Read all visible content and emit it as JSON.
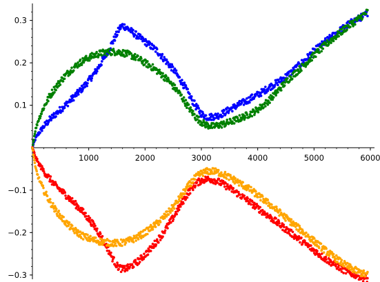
{
  "chart_data": {
    "type": "scatter",
    "title": "",
    "xlabel": "",
    "ylabel": "",
    "xlim": [
      0,
      6000
    ],
    "ylim": [
      -0.31,
      0.34
    ],
    "grid": false,
    "legend": "none",
    "x_ticks": [
      1000,
      2000,
      3000,
      4000,
      5000,
      6000
    ],
    "x_tick_labels": [
      "1000",
      "2000",
      "3000",
      "4000",
      "5000",
      "6000"
    ],
    "y_ticks": [
      -0.3,
      -0.2,
      -0.1,
      0.1,
      0.2,
      0.3
    ],
    "y_tick_labels": [
      "−0.3",
      "−0.2",
      "−0.1",
      "0.1",
      "0.2",
      "0.3"
    ],
    "series": [
      {
        "color": "#0000ff",
        "x": [
          0,
          50,
          100,
          200,
          300,
          400,
          500,
          600,
          700,
          800,
          900,
          1000,
          1100,
          1200,
          1300,
          1400,
          1500,
          1550,
          1600,
          1650,
          1700,
          1800,
          1900,
          2000,
          2100,
          2200,
          2300,
          2400,
          2500,
          2600,
          2700,
          2800,
          2900,
          3000,
          3100,
          3200,
          3300,
          3400,
          3500,
          3600,
          3700,
          3800,
          3900,
          4000,
          4100,
          4200,
          4300,
          4400,
          4500,
          4600,
          4700,
          4800,
          4900,
          5000,
          5100,
          5200,
          5300,
          5400,
          5500,
          5600,
          5700,
          5800,
          5900,
          5950
        ],
        "y": [
          0.0,
          0.02,
          0.032,
          0.05,
          0.065,
          0.078,
          0.09,
          0.102,
          0.115,
          0.128,
          0.142,
          0.158,
          0.175,
          0.195,
          0.218,
          0.243,
          0.268,
          0.282,
          0.288,
          0.285,
          0.28,
          0.27,
          0.26,
          0.25,
          0.24,
          0.23,
          0.215,
          0.2,
          0.185,
          0.165,
          0.145,
          0.12,
          0.098,
          0.08,
          0.072,
          0.073,
          0.076,
          0.082,
          0.09,
          0.097,
          0.104,
          0.11,
          0.118,
          0.125,
          0.133,
          0.142,
          0.15,
          0.158,
          0.168,
          0.178,
          0.19,
          0.202,
          0.215,
          0.228,
          0.238,
          0.25,
          0.26,
          0.27,
          0.28,
          0.29,
          0.298,
          0.305,
          0.312,
          0.318
        ]
      },
      {
        "color": "#008000",
        "x": [
          0,
          50,
          100,
          200,
          300,
          400,
          500,
          600,
          700,
          800,
          900,
          1000,
          1100,
          1200,
          1300,
          1400,
          1500,
          1600,
          1700,
          1800,
          1900,
          2000,
          2100,
          2200,
          2300,
          2400,
          2500,
          2600,
          2700,
          2800,
          2900,
          3000,
          3100,
          3200,
          3300,
          3400,
          3500,
          3600,
          3700,
          3800,
          3900,
          4000,
          4100,
          4200,
          4300,
          4400,
          4500,
          4600,
          4700,
          4800,
          4900,
          5000,
          5100,
          5200,
          5300,
          5400,
          5500,
          5600,
          5700,
          5800,
          5900,
          5950
        ],
        "y": [
          0.0,
          0.04,
          0.063,
          0.095,
          0.12,
          0.14,
          0.157,
          0.172,
          0.185,
          0.196,
          0.205,
          0.212,
          0.218,
          0.222,
          0.225,
          0.226,
          0.226,
          0.224,
          0.22,
          0.215,
          0.208,
          0.2,
          0.192,
          0.183,
          0.172,
          0.16,
          0.145,
          0.13,
          0.11,
          0.09,
          0.072,
          0.06,
          0.053,
          0.05,
          0.053,
          0.056,
          0.06,
          0.065,
          0.07,
          0.076,
          0.082,
          0.09,
          0.1,
          0.112,
          0.125,
          0.14,
          0.155,
          0.168,
          0.18,
          0.192,
          0.205,
          0.218,
          0.23,
          0.242,
          0.253,
          0.264,
          0.275,
          0.286,
          0.295,
          0.305,
          0.315,
          0.32
        ]
      },
      {
        "color": "#ff0000",
        "x": [
          0,
          50,
          100,
          200,
          300,
          400,
          500,
          600,
          700,
          800,
          900,
          1000,
          1100,
          1200,
          1300,
          1400,
          1500,
          1600,
          1700,
          1800,
          1900,
          2000,
          2100,
          2200,
          2300,
          2400,
          2500,
          2600,
          2700,
          2800,
          2900,
          3000,
          3100,
          3200,
          3300,
          3400,
          3500,
          3600,
          3700,
          3800,
          3900,
          4000,
          4100,
          4200,
          4300,
          4400,
          4500,
          4600,
          4700,
          4800,
          4900,
          5000,
          5100,
          5200,
          5300,
          5400,
          5500,
          5600,
          5700,
          5800,
          5900,
          5950
        ],
        "y": [
          0.0,
          -0.02,
          -0.035,
          -0.055,
          -0.072,
          -0.088,
          -0.1,
          -0.112,
          -0.125,
          -0.138,
          -0.152,
          -0.168,
          -0.185,
          -0.205,
          -0.228,
          -0.255,
          -0.278,
          -0.287,
          -0.283,
          -0.275,
          -0.265,
          -0.252,
          -0.238,
          -0.222,
          -0.205,
          -0.185,
          -0.165,
          -0.142,
          -0.12,
          -0.1,
          -0.085,
          -0.077,
          -0.074,
          -0.075,
          -0.08,
          -0.087,
          -0.095,
          -0.104,
          -0.113,
          -0.122,
          -0.132,
          -0.142,
          -0.152,
          -0.162,
          -0.172,
          -0.182,
          -0.192,
          -0.202,
          -0.212,
          -0.222,
          -0.232,
          -0.242,
          -0.252,
          -0.262,
          -0.27,
          -0.278,
          -0.286,
          -0.293,
          -0.298,
          -0.303,
          -0.308,
          -0.31
        ]
      },
      {
        "color": "#ffa500",
        "x": [
          0,
          50,
          100,
          200,
          300,
          400,
          500,
          600,
          700,
          800,
          900,
          1000,
          1100,
          1200,
          1300,
          1400,
          1500,
          1600,
          1700,
          1800,
          1900,
          2000,
          2100,
          2200,
          2300,
          2400,
          2500,
          2600,
          2700,
          2800,
          2900,
          3000,
          3100,
          3200,
          3300,
          3400,
          3500,
          3600,
          3700,
          3800,
          3900,
          4000,
          4100,
          4200,
          4300,
          4400,
          4500,
          4600,
          4700,
          4800,
          4900,
          5000,
          5100,
          5200,
          5300,
          5400,
          5500,
          5600,
          5700,
          5800,
          5900,
          5950
        ],
        "y": [
          0.0,
          -0.045,
          -0.068,
          -0.1,
          -0.125,
          -0.145,
          -0.162,
          -0.177,
          -0.19,
          -0.2,
          -0.208,
          -0.214,
          -0.218,
          -0.221,
          -0.223,
          -0.224,
          -0.225,
          -0.224,
          -0.22,
          -0.215,
          -0.208,
          -0.2,
          -0.19,
          -0.18,
          -0.168,
          -0.155,
          -0.14,
          -0.122,
          -0.103,
          -0.085,
          -0.07,
          -0.06,
          -0.056,
          -0.055,
          -0.058,
          -0.063,
          -0.07,
          -0.077,
          -0.085,
          -0.093,
          -0.102,
          -0.112,
          -0.122,
          -0.132,
          -0.143,
          -0.154,
          -0.165,
          -0.176,
          -0.187,
          -0.198,
          -0.209,
          -0.22,
          -0.231,
          -0.242,
          -0.252,
          -0.262,
          -0.272,
          -0.28,
          -0.287,
          -0.293,
          -0.298,
          -0.3
        ]
      }
    ]
  }
}
